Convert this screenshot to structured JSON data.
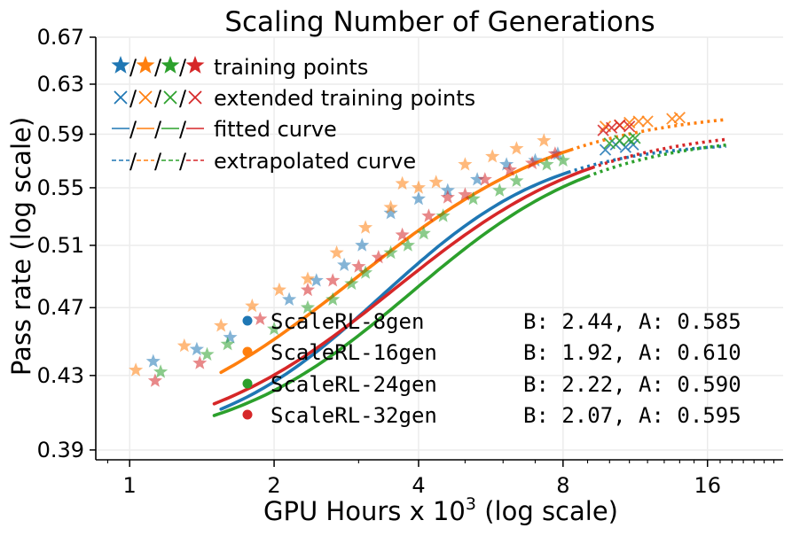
{
  "chart_data": {
    "type": "scatter",
    "title": "Scaling Number of Generations",
    "xlabel_main": "GPU Hours x 10",
    "xlabel_sup": "3",
    "xlabel_tail": " (log scale)",
    "ylabel": "Pass rate (log scale)",
    "x_scale": "log2",
    "y_scale": "log",
    "xlim": [
      0.85,
      23
    ],
    "ylim": [
      0.385,
      0.67
    ],
    "x_ticks": [
      1,
      2,
      4,
      8,
      16
    ],
    "x_tick_labels": [
      "1",
      "2",
      "4",
      "8",
      "16"
    ],
    "y_ticks": [
      0.39,
      0.43,
      0.47,
      0.51,
      0.55,
      0.59,
      0.63,
      0.67
    ],
    "y_tick_labels": [
      "0.39",
      "0.43",
      "0.47",
      "0.51",
      "0.55",
      "0.59",
      "0.63",
      "0.67"
    ],
    "grid": true,
    "legend_markers": {
      "position": "top-left",
      "entries": [
        {
          "marker": "star",
          "label": "training points"
        },
        {
          "marker": "x",
          "label": "extended training points"
        },
        {
          "marker": "solid-line",
          "label": "fitted curve"
        },
        {
          "marker": "dashed-line",
          "label": "extrapolated curve"
        }
      ],
      "separator": "/"
    },
    "legend_series_position": "bottom-right",
    "series": [
      {
        "name": "ScaleRL-8gen",
        "params": "B: 2.44, A: 0.585",
        "color": "#1f77b4",
        "A": 0.585,
        "B": 2.44,
        "Cmid": 3.65,
        "R0": 0.39,
        "fit_range": [
          1.55,
          8.2
        ],
        "extrap_range": [
          8.2,
          17.5
        ],
        "training_points": [
          [
            1.12,
            0.438
          ],
          [
            1.38,
            0.445
          ],
          [
            1.62,
            0.452
          ],
          [
            2.15,
            0.475
          ],
          [
            2.45,
            0.487
          ],
          [
            2.8,
            0.497
          ],
          [
            3.05,
            0.51
          ],
          [
            3.5,
            0.532
          ],
          [
            4.0,
            0.542
          ],
          [
            4.6,
            0.548
          ],
          [
            5.3,
            0.556
          ],
          [
            6.1,
            0.567
          ],
          [
            7.0,
            0.57
          ],
          [
            7.8,
            0.575
          ]
        ],
        "extended_points": [
          [
            9.8,
            0.578
          ],
          [
            10.3,
            0.582
          ],
          [
            10.8,
            0.58
          ],
          [
            11.2,
            0.582
          ]
        ]
      },
      {
        "name": "ScaleRL-16gen",
        "params": "B: 1.92, A: 0.610",
        "color": "#ff7f0e",
        "A": 0.61,
        "B": 1.92,
        "Cmid": 3.3,
        "R0": 0.39,
        "fit_range": [
          1.55,
          8.3
        ],
        "extrap_range": [
          8.3,
          17.5
        ],
        "training_points": [
          [
            1.03,
            0.433
          ],
          [
            1.3,
            0.447
          ],
          [
            1.55,
            0.459
          ],
          [
            1.8,
            0.471
          ],
          [
            2.05,
            0.481
          ],
          [
            2.35,
            0.488
          ],
          [
            2.7,
            0.505
          ],
          [
            3.1,
            0.522
          ],
          [
            3.5,
            0.536
          ],
          [
            3.7,
            0.553
          ],
          [
            4.0,
            0.55
          ],
          [
            4.35,
            0.554
          ],
          [
            5.0,
            0.567
          ],
          [
            5.7,
            0.573
          ],
          [
            6.4,
            0.579
          ],
          [
            7.3,
            0.585
          ]
        ],
        "extended_points": [
          [
            9.8,
            0.596
          ],
          [
            10.5,
            0.597
          ],
          [
            11.0,
            0.599
          ],
          [
            11.5,
            0.6
          ],
          [
            12.0,
            0.6
          ],
          [
            13.5,
            0.602
          ],
          [
            14.0,
            0.603
          ]
        ]
      },
      {
        "name": "ScaleRL-24gen",
        "params": "B: 2.22, A: 0.590",
        "color": "#2ca02c",
        "A": 0.59,
        "B": 2.22,
        "Cmid": 4.25,
        "R0": 0.39,
        "fit_range": [
          1.5,
          9.0
        ],
        "extrap_range": [
          9.0,
          17.5
        ],
        "training_points": [
          [
            1.16,
            0.432
          ],
          [
            1.45,
            0.442
          ],
          [
            1.6,
            0.448
          ],
          [
            2.0,
            0.457
          ],
          [
            2.35,
            0.47
          ],
          [
            2.65,
            0.475
          ],
          [
            2.9,
            0.485
          ],
          [
            3.1,
            0.492
          ],
          [
            3.5,
            0.505
          ],
          [
            3.8,
            0.51
          ],
          [
            4.1,
            0.518
          ],
          [
            4.5,
            0.53
          ],
          [
            5.2,
            0.542
          ],
          [
            5.9,
            0.548
          ],
          [
            6.4,
            0.555
          ],
          [
            7.4,
            0.567
          ],
          [
            8.0,
            0.57
          ]
        ],
        "extended_points": [
          [
            10.0,
            0.583
          ],
          [
            10.5,
            0.585
          ],
          [
            11.0,
            0.586
          ],
          [
            11.3,
            0.587
          ]
        ]
      },
      {
        "name": "ScaleRL-32gen",
        "params": "B: 2.07, A: 0.595",
        "color": "#d62728",
        "A": 0.595,
        "B": 2.07,
        "Cmid": 3.95,
        "R0": 0.39,
        "fit_range": [
          1.5,
          9.2
        ],
        "extrap_range": [
          9.2,
          17.5
        ],
        "training_points": [
          [
            1.13,
            0.427
          ],
          [
            1.4,
            0.437
          ],
          [
            1.87,
            0.463
          ],
          [
            2.35,
            0.481
          ],
          [
            2.65,
            0.487
          ],
          [
            3.0,
            0.496
          ],
          [
            3.3,
            0.502
          ],
          [
            3.7,
            0.517
          ],
          [
            4.2,
            0.53
          ],
          [
            4.6,
            0.543
          ],
          [
            5.0,
            0.545
          ],
          [
            5.5,
            0.556
          ],
          [
            6.2,
            0.563
          ],
          [
            6.9,
            0.568
          ],
          [
            7.7,
            0.575
          ]
        ],
        "extended_points": [
          [
            9.7,
            0.593
          ],
          [
            10.1,
            0.595
          ],
          [
            10.5,
            0.597
          ],
          [
            11.0,
            0.596
          ]
        ]
      }
    ]
  }
}
